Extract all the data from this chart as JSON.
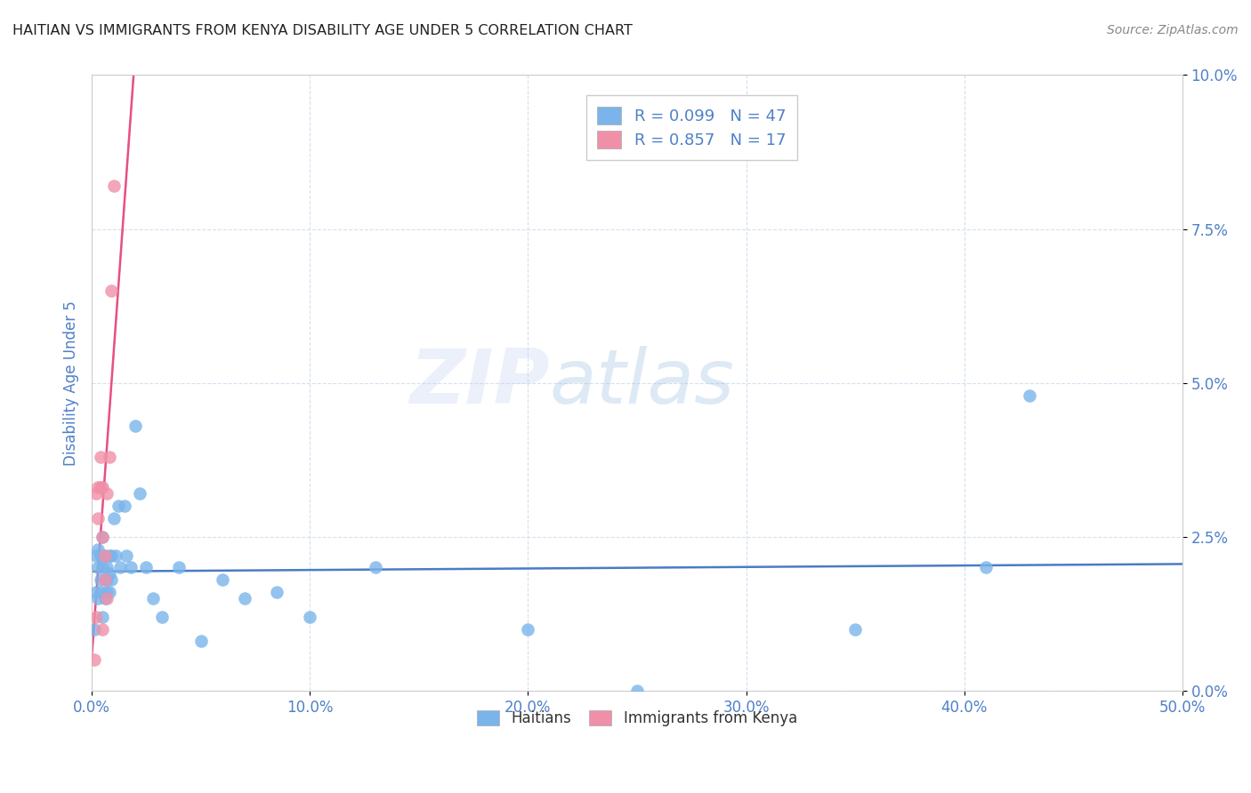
{
  "title": "HAITIAN VS IMMIGRANTS FROM KENYA DISABILITY AGE UNDER 5 CORRELATION CHART",
  "source": "Source: ZipAtlas.com",
  "ylabel": "Disability Age Under 5",
  "xlim": [
    0.0,
    0.5
  ],
  "ylim": [
    0.0,
    0.1
  ],
  "watermark_zip": "ZIP",
  "watermark_atlas": "atlas",
  "legend_entries": [
    {
      "label": "R = 0.099   N = 47",
      "facecolor": "#aacbf5"
    },
    {
      "label": "R = 0.857   N = 17",
      "facecolor": "#f9c8d5"
    }
  ],
  "legend_label_bottom": [
    "Haitians",
    "Immigrants from Kenya"
  ],
  "haitian_x": [
    0.001,
    0.002,
    0.002,
    0.003,
    0.003,
    0.003,
    0.004,
    0.004,
    0.004,
    0.005,
    0.005,
    0.005,
    0.006,
    0.006,
    0.006,
    0.007,
    0.007,
    0.007,
    0.008,
    0.008,
    0.008,
    0.009,
    0.009,
    0.01,
    0.011,
    0.012,
    0.013,
    0.015,
    0.016,
    0.018,
    0.02,
    0.022,
    0.025,
    0.028,
    0.032,
    0.04,
    0.05,
    0.06,
    0.07,
    0.085,
    0.1,
    0.13,
    0.2,
    0.25,
    0.35,
    0.41,
    0.43
  ],
  "haitian_y": [
    0.01,
    0.016,
    0.022,
    0.015,
    0.02,
    0.023,
    0.018,
    0.022,
    0.016,
    0.012,
    0.02,
    0.025,
    0.018,
    0.015,
    0.022,
    0.02,
    0.016,
    0.018,
    0.022,
    0.016,
    0.019,
    0.018,
    0.022,
    0.028,
    0.022,
    0.03,
    0.02,
    0.03,
    0.022,
    0.02,
    0.043,
    0.032,
    0.02,
    0.015,
    0.012,
    0.02,
    0.008,
    0.018,
    0.015,
    0.016,
    0.012,
    0.02,
    0.01,
    0.0,
    0.01,
    0.02,
    0.048
  ],
  "kenya_x": [
    0.001,
    0.002,
    0.002,
    0.003,
    0.003,
    0.004,
    0.004,
    0.005,
    0.005,
    0.005,
    0.006,
    0.006,
    0.007,
    0.007,
    0.008,
    0.009,
    0.01
  ],
  "kenya_y": [
    0.005,
    0.012,
    0.032,
    0.028,
    0.033,
    0.033,
    0.038,
    0.025,
    0.033,
    0.01,
    0.022,
    0.018,
    0.032,
    0.015,
    0.038,
    0.065,
    0.082
  ],
  "haitian_color": "#7ab4ea",
  "kenya_color": "#f090a8",
  "haitian_trend_color": "#4a7cc4",
  "kenya_trend_color": "#e85080",
  "background_color": "#ffffff",
  "grid_color": "#d5dff0",
  "title_color": "#222222",
  "axis_label_color": "#5080c8",
  "tick_color": "#5080c8",
  "source_color": "#888888"
}
